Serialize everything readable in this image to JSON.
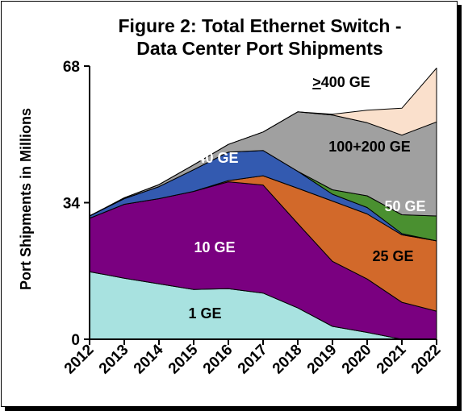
{
  "chart_data": {
    "type": "area",
    "stacked": true,
    "title_line1": "Figure 2: Total Ethernet Switch -",
    "title_line2": "Data Center Port Shipments",
    "ylabel": "Port Shipments in Millions",
    "ylim": [
      0,
      68
    ],
    "yticks": [
      "0",
      "34",
      "68"
    ],
    "x": [
      "2012",
      "2013",
      "2014",
      "2015",
      "2016",
      "2017",
      "2018",
      "2019",
      "2020",
      "2021",
      "2022"
    ],
    "series": [
      {
        "name": "1 GE",
        "color": "#a8e2e0",
        "values": [
          16.8,
          15.2,
          13.8,
          12.4,
          12.6,
          11.5,
          7.8,
          3.2,
          1.7,
          0,
          0
        ]
      },
      {
        "name": "10 GE",
        "color": "#7a0080",
        "values": [
          13.3,
          18.4,
          21.2,
          24.4,
          26.6,
          26.9,
          21.0,
          16.2,
          13.3,
          9.2,
          7.0
        ]
      },
      {
        "name": "25 GE",
        "color": "#d2692a",
        "values": [
          0,
          0,
          0,
          0,
          0.3,
          2.3,
          8.8,
          15.0,
          16.2,
          16.8,
          17.5
        ]
      },
      {
        "name": "40 GE",
        "color": "#335ab0",
        "values": [
          0.6,
          1.4,
          3.0,
          5.4,
          7.1,
          6.3,
          4.2,
          1.7,
          1.6,
          0.3,
          0
        ]
      },
      {
        "name": "50 GE",
        "color": "#4a9030",
        "values": [
          0,
          0,
          0,
          0,
          0,
          0,
          0,
          1.1,
          2.9,
          4.7,
          6.2
        ]
      },
      {
        "name": "100+200 GE",
        "color": "#a0a0a0",
        "values": [
          0,
          0.2,
          0.5,
          1.2,
          1.9,
          4.6,
          14.8,
          18.6,
          18.2,
          19.8,
          23.4
        ]
      },
      {
        "name": ">400 GE",
        "color": "#fae0cc",
        "values": [
          0,
          0,
          0,
          0,
          0,
          0,
          0,
          0.2,
          3.1,
          6.7,
          13.4
        ]
      }
    ],
    "labels": {
      "ge1": "1 GE",
      "ge10": "10 GE",
      "ge25": "25 GE",
      "ge40": "40 GE",
      "ge50": "50 GE",
      "ge100": "100+200 GE",
      "ge400_symbol": ">",
      "ge400_text": "400 GE"
    },
    "grid": false,
    "legend": "none"
  }
}
